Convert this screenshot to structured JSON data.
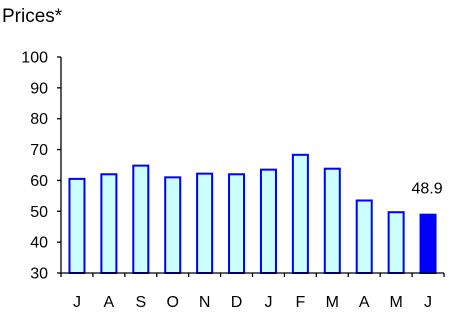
{
  "chart_data": {
    "type": "bar",
    "title": "Prices*",
    "categories": [
      "J",
      "A",
      "S",
      "O",
      "N",
      "D",
      "J",
      "F",
      "M",
      "A",
      "M",
      "J"
    ],
    "values": [
      60.5,
      62,
      64.8,
      61,
      62.2,
      62,
      63.5,
      68.3,
      63.8,
      53.5,
      49.7,
      48.9
    ],
    "highlight_index": 11,
    "data_labels": [
      {
        "index": 11,
        "text": "48.9"
      }
    ],
    "ylim": [
      30,
      100
    ],
    "yticks": [
      30,
      40,
      50,
      60,
      70,
      80,
      90,
      100
    ],
    "xlabel": "",
    "ylabel": "",
    "grid": false,
    "legend": "none",
    "colors": {
      "bar_fill": "#ccffff",
      "bar_stroke": "#0000ff",
      "highlight_fill": "#0000ff",
      "axis": "#000000"
    }
  }
}
